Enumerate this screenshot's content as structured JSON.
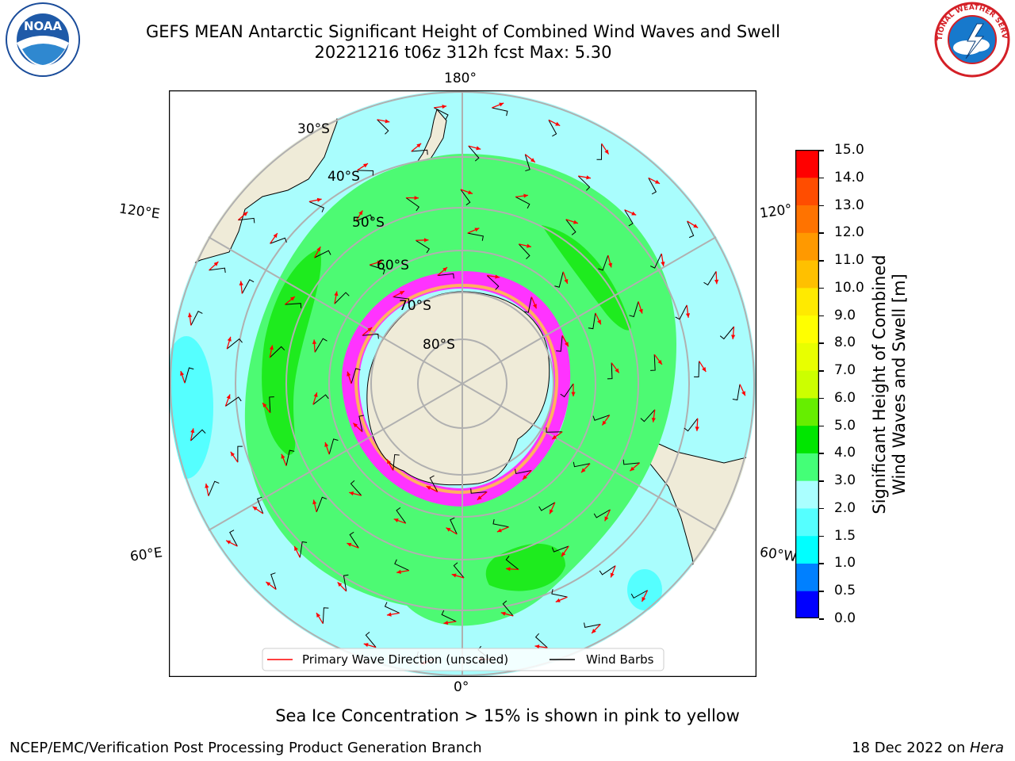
{
  "title": {
    "line1": "GEFS MEAN Antarctic Significant Height of Combined Wind Waves and Swell",
    "line2": "20221216 t06z 312h fcst   Max: 5.30"
  },
  "map": {
    "projection": "south-polar-stereographic",
    "longitude_labels": {
      "top": "180°",
      "bottom": "0°",
      "left_upper": "120°E",
      "left_lower": "60°E",
      "right_upper": "120°",
      "right_lower": "60°W"
    },
    "latitude_labels": [
      "30°S",
      "40°S",
      "50°S",
      "60°S",
      "70°S",
      "80°S"
    ],
    "legend": {
      "wave_direction": "Primary Wave Direction (unscaled)",
      "wind_barbs": "Wind Barbs"
    },
    "colors": {
      "land": "#efebd8",
      "ocean_base": "#a9fdfd",
      "band_3_4": "#4dfa73",
      "band_4_5": "#1eeb1e",
      "ice_pink": "#ff33ff",
      "ice_orange": "#ffb060",
      "arrow": "#ff0000"
    }
  },
  "colorbar": {
    "label_line1": "Significant Height of Combined",
    "label_line2": "Wind Waves and Swell [m]",
    "ticks": [
      "15.0",
      "14.0",
      "13.0",
      "12.0",
      "11.0",
      "10.0",
      "9.0",
      "8.0",
      "7.0",
      "6.0",
      "5.0",
      "4.0",
      "3.0",
      "2.0",
      "1.5",
      "1.0",
      "0.5",
      "0.0"
    ],
    "colors": [
      "#0000ff",
      "#0080ff",
      "#00ffff",
      "#55ffff",
      "#aaffff",
      "#44ff77",
      "#00e600",
      "#66ee00",
      "#ccff00",
      "#e8ff00",
      "#ffff00",
      "#ffea00",
      "#ffc000",
      "#ff9900",
      "#ff7300",
      "#ff4d00",
      "#ff0000"
    ]
  },
  "footnote": "Sea Ice Concentration > 15% is shown in pink to yellow",
  "credit": "NCEP/EMC/Verification Post Processing Product Generation Branch",
  "date": {
    "text": "18 Dec 2022 on ",
    "machine": "Hera"
  },
  "logos": {
    "noaa": "NOAA",
    "nws": "NATIONAL WEATHER SERVICE"
  }
}
